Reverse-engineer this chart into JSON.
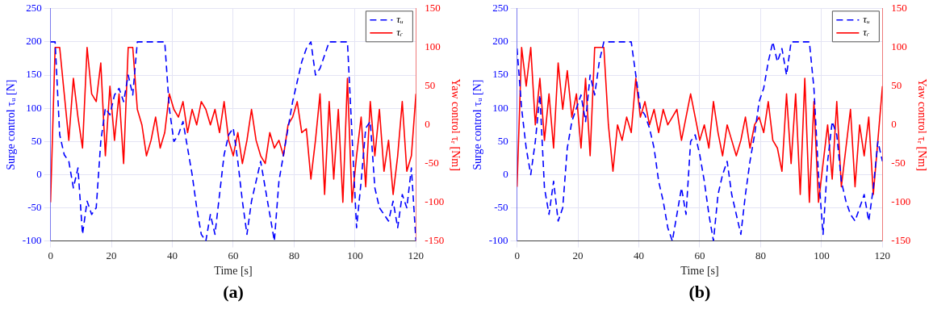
{
  "chart_data": [
    {
      "type": "line",
      "xlabel": "Time [s]",
      "ylabel": "Surge control τᵤ [N]",
      "y2label": "Yaw control τᵣ [Nm]",
      "annotations": [
        "(a)"
      ],
      "x": [
        0,
        1.5,
        3,
        4.5,
        6,
        7.5,
        9,
        10.5,
        12,
        13.5,
        15,
        16.5,
        18,
        19.5,
        21,
        22.5,
        24,
        25.5,
        27,
        28.5,
        30,
        31.5,
        33,
        34.5,
        36,
        37.5,
        39,
        40.5,
        42,
        43.5,
        45,
        46.5,
        48,
        49.5,
        51,
        52.5,
        54,
        55.5,
        57,
        58.5,
        60,
        61.5,
        63,
        64.5,
        66,
        67.5,
        69,
        70.5,
        72,
        73.5,
        75,
        76.5,
        78,
        79.5,
        81,
        82.5,
        84,
        85.5,
        87,
        88.5,
        90,
        91.5,
        93,
        94.5,
        96,
        97.5,
        99,
        100.5,
        102,
        103.5,
        105,
        106.5,
        108,
        109.5,
        111,
        112.5,
        114,
        115.5,
        117,
        118.5,
        120
      ],
      "xlim": [
        0,
        120
      ],
      "xticks": [
        0,
        20,
        40,
        60,
        80,
        100,
        120
      ],
      "ylim": [
        -100,
        250
      ],
      "yticks": [
        -100,
        -50,
        0,
        50,
        100,
        150,
        200,
        250
      ],
      "y2lim": [
        -150,
        150
      ],
      "y2ticks": [
        -150,
        -100,
        -50,
        0,
        50,
        100,
        150
      ],
      "grid": true,
      "legend": "top right",
      "marker": "none",
      "series": [
        {
          "name": "τᵤ",
          "color": "#0000ff",
          "line_style": "dashed",
          "values": [
            200,
            200,
            60,
            30,
            20,
            -20,
            10,
            -90,
            -40,
            -60,
            -50,
            50,
            100,
            90,
            120,
            130,
            110,
            150,
            120,
            200,
            200,
            200,
            200,
            200,
            200,
            200,
            100,
            50,
            60,
            80,
            40,
            0,
            -50,
            -90,
            -100,
            -60,
            -90,
            -30,
            30,
            60,
            70,
            20,
            -40,
            -90,
            -40,
            -10,
            20,
            -20,
            -60,
            -100,
            -10,
            30,
            70,
            110,
            140,
            170,
            190,
            200,
            150,
            160,
            180,
            200,
            200,
            200,
            200,
            200,
            60,
            -80,
            -10,
            70,
            80,
            -20,
            -50,
            -60,
            -70,
            -40,
            -80,
            -30,
            -50,
            10,
            -100
          ]
        },
        {
          "name": "τᵣ",
          "color": "#ff0000",
          "line_style": "solid",
          "axis": "y2",
          "values": [
            -100,
            100,
            100,
            40,
            -20,
            60,
            10,
            -30,
            100,
            40,
            30,
            80,
            -40,
            50,
            -20,
            40,
            -50,
            100,
            100,
            20,
            0,
            -40,
            -20,
            10,
            -30,
            -10,
            40,
            20,
            10,
            30,
            -10,
            20,
            0,
            30,
            20,
            0,
            20,
            -10,
            30,
            -20,
            -40,
            -10,
            -50,
            -20,
            20,
            -20,
            -40,
            -50,
            -10,
            -30,
            -20,
            -40,
            0,
            10,
            30,
            -10,
            -5,
            -70,
            -20,
            40,
            -90,
            30,
            -70,
            20,
            -100,
            60,
            -100,
            -40,
            10,
            -80,
            30,
            -40,
            20,
            -60,
            -20,
            -90,
            -40,
            30,
            -60,
            -40,
            40
          ]
        }
      ]
    },
    {
      "type": "line",
      "xlabel": "Time [s]",
      "ylabel": "Surge control τᵤ [N]",
      "y2label": "Yaw control τᵣ [Nm]",
      "annotations": [
        "(b)"
      ],
      "x": [
        0,
        1.5,
        3,
        4.5,
        6,
        7.5,
        9,
        10.5,
        12,
        13.5,
        15,
        16.5,
        18,
        19.5,
        21,
        22.5,
        24,
        25.5,
        27,
        28.5,
        30,
        31.5,
        33,
        34.5,
        36,
        37.5,
        39,
        40.5,
        42,
        43.5,
        45,
        46.5,
        48,
        49.5,
        51,
        52.5,
        54,
        55.5,
        57,
        58.5,
        60,
        61.5,
        63,
        64.5,
        66,
        67.5,
        69,
        70.5,
        72,
        73.5,
        75,
        76.5,
        78,
        79.5,
        81,
        82.5,
        84,
        85.5,
        87,
        88.5,
        90,
        91.5,
        93,
        94.5,
        96,
        97.5,
        99,
        100.5,
        102,
        103.5,
        105,
        106.5,
        108,
        109.5,
        111,
        112.5,
        114,
        115.5,
        117,
        118.5,
        120
      ],
      "xlim": [
        0,
        120
      ],
      "xticks": [
        0,
        20,
        40,
        60,
        80,
        100,
        120
      ],
      "ylim": [
        -100,
        250
      ],
      "yticks": [
        -100,
        -50,
        0,
        50,
        100,
        150,
        200,
        250
      ],
      "y2lim": [
        -150,
        150
      ],
      "y2ticks": [
        -150,
        -100,
        -50,
        0,
        50,
        100,
        150
      ],
      "grid": true,
      "legend": "top right",
      "marker": "none",
      "series": [
        {
          "name": "τᵤ",
          "color": "#0000ff",
          "line_style": "dashed",
          "values": [
            190,
            100,
            40,
            0,
            50,
            120,
            -20,
            -60,
            -10,
            -70,
            -50,
            40,
            80,
            100,
            120,
            80,
            150,
            120,
            170,
            200,
            200,
            200,
            200,
            200,
            200,
            200,
            150,
            100,
            90,
            70,
            40,
            -10,
            -40,
            -80,
            -100,
            -60,
            -20,
            -60,
            50,
            60,
            30,
            -10,
            -60,
            -100,
            -30,
            0,
            20,
            -30,
            -60,
            -90,
            -30,
            20,
            60,
            110,
            130,
            170,
            200,
            170,
            190,
            150,
            200,
            200,
            200,
            200,
            200,
            130,
            0,
            -90,
            20,
            80,
            60,
            -10,
            -40,
            -60,
            -70,
            -50,
            -30,
            -70,
            -20,
            50,
            20
          ]
        },
        {
          "name": "τᵣ",
          "color": "#ff0000",
          "line_style": "solid",
          "axis": "y2",
          "values": [
            -80,
            100,
            50,
            100,
            0,
            60,
            -20,
            40,
            -30,
            80,
            20,
            70,
            10,
            40,
            -30,
            60,
            -40,
            100,
            100,
            100,
            0,
            -60,
            0,
            -20,
            10,
            -10,
            60,
            10,
            30,
            0,
            20,
            -10,
            20,
            0,
            10,
            20,
            -20,
            10,
            40,
            10,
            -20,
            0,
            -30,
            30,
            -10,
            -40,
            0,
            -20,
            -40,
            -20,
            10,
            -30,
            0,
            10,
            -10,
            30,
            -20,
            -30,
            -60,
            40,
            -50,
            40,
            -90,
            60,
            -100,
            30,
            -100,
            -50,
            0,
            -70,
            30,
            -80,
            -30,
            20,
            -80,
            0,
            -40,
            10,
            -90,
            -20,
            50
          ]
        }
      ]
    }
  ]
}
